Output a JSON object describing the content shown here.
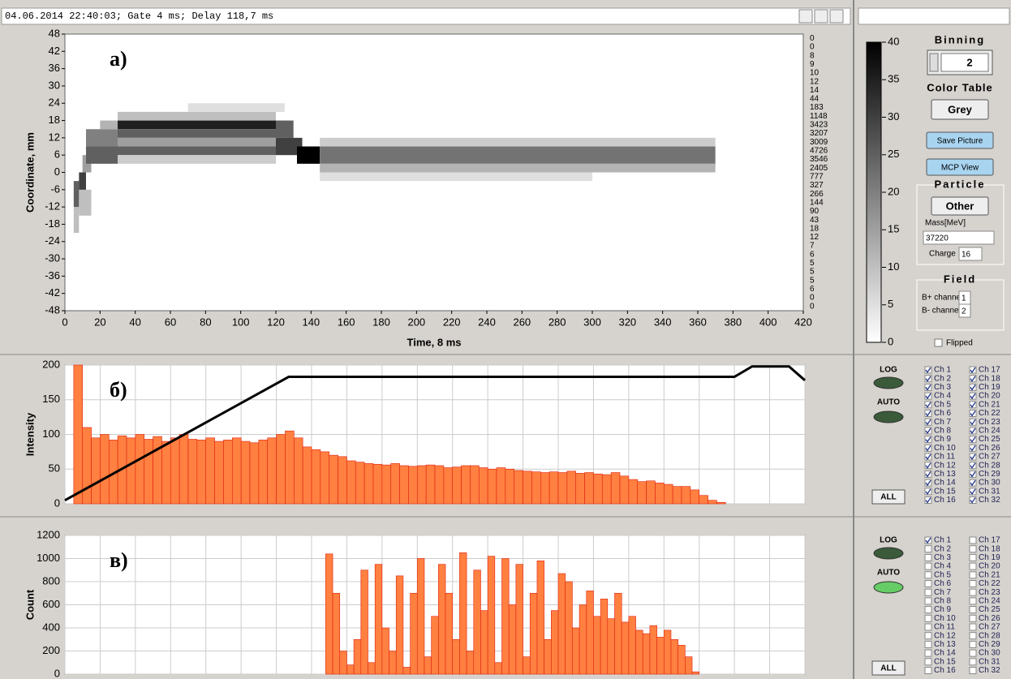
{
  "header": {
    "status": "04.06.2014 22:40:03; Gate 4 ms; Delay 118,7 ms"
  },
  "chart_data": [
    {
      "type": "heatmap",
      "annotation": "а)",
      "xlabel": "Time, 8 ms",
      "ylabel": "Coordinate, mm",
      "xlim": [
        0,
        420
      ],
      "xticks": [
        0,
        20,
        40,
        60,
        80,
        100,
        120,
        140,
        160,
        180,
        200,
        220,
        240,
        260,
        280,
        300,
        320,
        340,
        360,
        380,
        400,
        420
      ],
      "ylim": [
        -48,
        48
      ],
      "yticks": [
        48,
        42,
        36,
        30,
        24,
        18,
        12,
        6,
        0,
        -6,
        -12,
        -18,
        -24,
        -30,
        -36,
        -42,
        -48
      ],
      "cells": [
        {
          "x": [
            5,
            8
          ],
          "y": [
            -21,
            -12
          ],
          "z": 10
        },
        {
          "x": [
            5,
            8
          ],
          "y": [
            -12,
            -3
          ],
          "z": 25
        },
        {
          "x": [
            8,
            12
          ],
          "y": [
            -9,
            0
          ],
          "z": 30
        },
        {
          "x": [
            10,
            15
          ],
          "y": [
            0,
            6
          ],
          "z": 15
        },
        {
          "x": [
            8,
            15
          ],
          "y": [
            -15,
            -6
          ],
          "z": 10
        },
        {
          "x": [
            12,
            30
          ],
          "y": [
            9,
            15
          ],
          "z": 20
        },
        {
          "x": [
            12,
            30
          ],
          "y": [
            3,
            9
          ],
          "z": 25
        },
        {
          "x": [
            20,
            30
          ],
          "y": [
            15,
            18
          ],
          "z": 12
        },
        {
          "x": [
            30,
            120
          ],
          "y": [
            15,
            18
          ],
          "z": 35
        },
        {
          "x": [
            30,
            120
          ],
          "y": [
            12,
            15
          ],
          "z": 25
        },
        {
          "x": [
            30,
            120
          ],
          "y": [
            9,
            12
          ],
          "z": 15
        },
        {
          "x": [
            30,
            120
          ],
          "y": [
            6,
            9
          ],
          "z": 25
        },
        {
          "x": [
            30,
            120
          ],
          "y": [
            18,
            21
          ],
          "z": 10
        },
        {
          "x": [
            30,
            120
          ],
          "y": [
            3,
            6
          ],
          "z": 8
        },
        {
          "x": [
            70,
            125
          ],
          "y": [
            21,
            24
          ],
          "z": 5
        },
        {
          "x": [
            120,
            130
          ],
          "y": [
            12,
            18
          ],
          "z": 25
        },
        {
          "x": [
            120,
            135
          ],
          "y": [
            6,
            12
          ],
          "z": 30
        },
        {
          "x": [
            132,
            145
          ],
          "y": [
            3,
            9
          ],
          "z": 40
        },
        {
          "x": [
            145,
            370
          ],
          "y": [
            3,
            9
          ],
          "z": 22
        },
        {
          "x": [
            145,
            370
          ],
          "y": [
            0,
            3
          ],
          "z": 12
        },
        {
          "x": [
            145,
            370
          ],
          "y": [
            9,
            12
          ],
          "z": 8
        },
        {
          "x": [
            145,
            300
          ],
          "y": [
            -3,
            0
          ],
          "z": 5
        }
      ],
      "row_counts": [
        0,
        0,
        8,
        9,
        10,
        12,
        14,
        44,
        183,
        1148,
        3423,
        3207,
        3009,
        4726,
        3546,
        2405,
        777,
        327,
        266,
        144,
        90,
        43,
        18,
        12,
        7,
        6,
        5,
        5,
        5,
        6,
        0,
        0
      ],
      "colorbar": {
        "lim": [
          0,
          40
        ],
        "ticks": [
          40,
          35,
          30,
          25,
          20,
          15,
          10,
          5,
          0
        ]
      }
    },
    {
      "type": "histogram",
      "annotation": "б)",
      "ylabel": "Intensity",
      "xlim": [
        0,
        420
      ],
      "xticks": [
        0,
        20,
        40,
        60,
        80,
        100,
        120,
        140,
        160,
        180,
        200,
        220,
        240,
        260,
        280,
        300,
        320,
        340,
        360,
        380,
        400,
        420
      ],
      "ylim": [
        0,
        200
      ],
      "yticks": [
        0,
        50,
        100,
        150,
        200
      ],
      "color": "#ff8040",
      "edge_color": "#e02010",
      "bins": [
        5,
        10,
        15,
        20,
        25,
        30,
        35,
        40,
        45,
        50,
        55,
        60,
        65,
        70,
        75,
        80,
        85,
        90,
        95,
        100,
        105,
        110,
        115,
        120,
        125,
        130,
        135,
        140,
        145,
        150,
        155,
        160,
        165,
        170,
        175,
        180,
        185,
        190,
        195,
        200,
        205,
        210,
        215,
        220,
        225,
        230,
        235,
        240,
        245,
        250,
        255,
        260,
        265,
        270,
        275,
        280,
        285,
        290,
        295,
        300,
        305,
        310,
        315,
        320,
        325,
        330,
        335,
        340,
        345,
        350,
        355,
        360,
        365,
        370,
        375,
        380
      ],
      "values": [
        200,
        110,
        95,
        100,
        92,
        98,
        95,
        100,
        93,
        97,
        90,
        95,
        100,
        93,
        92,
        95,
        90,
        92,
        95,
        90,
        88,
        92,
        95,
        100,
        105,
        95,
        82,
        78,
        75,
        70,
        68,
        62,
        60,
        58,
        57,
        56,
        58,
        55,
        54,
        55,
        56,
        55,
        52,
        53,
        55,
        55,
        52,
        50,
        52,
        50,
        48,
        47,
        46,
        45,
        46,
        45,
        47,
        44,
        45,
        43,
        42,
        45,
        40,
        35,
        32,
        33,
        30,
        28,
        25,
        25,
        20,
        12,
        5,
        2,
        0
      ],
      "line": {
        "x": [
          0,
          127,
          380,
          390,
          411,
          420
        ],
        "y": [
          5,
          183,
          183,
          198,
          198,
          178
        ],
        "color": "#000000"
      }
    },
    {
      "type": "histogram",
      "annotation": "в)",
      "ylabel": "Count",
      "xlim": [
        0,
        420
      ],
      "xticks": [
        0,
        20,
        40,
        60,
        80,
        100,
        120,
        140,
        160,
        180,
        200,
        220,
        240,
        260,
        280,
        300,
        320,
        340,
        360,
        380,
        400,
        420
      ],
      "ylim": [
        0,
        1200
      ],
      "yticks": [
        0,
        200,
        400,
        600,
        800,
        1000,
        1200
      ],
      "color": "#ff8040",
      "edge_color": "#e02010",
      "bins": [
        144,
        148,
        152,
        156,
        160,
        164,
        168,
        172,
        176,
        180,
        184,
        188,
        192,
        196,
        200,
        204,
        208,
        212,
        216,
        220,
        224,
        228,
        232,
        236,
        240,
        244,
        248,
        252,
        256,
        260,
        264,
        268,
        272,
        276,
        280,
        284,
        288,
        292,
        296,
        300,
        304,
        308,
        312,
        316,
        320,
        324,
        328,
        332,
        336,
        340,
        344,
        348,
        352,
        356,
        360,
        364
      ],
      "values": [
        0,
        1040,
        700,
        200,
        80,
        300,
        900,
        100,
        950,
        400,
        200,
        850,
        60,
        700,
        1000,
        150,
        500,
        950,
        700,
        300,
        1050,
        200,
        900,
        550,
        1020,
        100,
        1000,
        600,
        950,
        150,
        700,
        980,
        300,
        550,
        870,
        800,
        400,
        600,
        720,
        500,
        650,
        480,
        700,
        450,
        500,
        380,
        350,
        420,
        320,
        380,
        300,
        250,
        150,
        20,
        0
      ]
    }
  ],
  "image_controls": {
    "binning_label": "Binning",
    "binning": 2,
    "color_table_label": "Color Table",
    "color_table": "Grey",
    "save_button": "Save Picture",
    "mcp_button": "MCP View",
    "particle_label": "Particle",
    "particle": "Other",
    "mass_label": "Mass[MeV]",
    "mass": 37220,
    "charge_label": "Charge",
    "charge": 16,
    "field_label": "Field",
    "b_plus_label": "B+ channel",
    "b_plus": 1,
    "b_minus_label": "B- channel",
    "b_minus": 2,
    "flipped_label": "Flipped",
    "flipped": false
  },
  "channel_names": [
    "Ch 1",
    "Ch 2",
    "Ch 3",
    "Ch 4",
    "Ch 5",
    "Ch 6",
    "Ch 7",
    "Ch 8",
    "Ch 9",
    "Ch 10",
    "Ch 11",
    "Ch 12",
    "Ch 13",
    "Ch 14",
    "Ch 15",
    "Ch 16",
    "Ch 17",
    "Ch 18",
    "Ch 19",
    "Ch 20",
    "Ch 21",
    "Ch 22",
    "Ch 23",
    "Ch 24",
    "Ch 25",
    "Ch 26",
    "Ch 27",
    "Ch 28",
    "Ch 29",
    "Ch 30",
    "Ch 31",
    "Ch 32"
  ],
  "channel_panels": [
    {
      "log_label": "LOG",
      "auto_label": "AUTO",
      "all_button": "ALL",
      "checked": [
        true,
        true,
        true,
        true,
        true,
        true,
        true,
        true,
        true,
        true,
        true,
        true,
        true,
        true,
        true,
        true,
        true,
        true,
        true,
        true,
        true,
        true,
        true,
        true,
        true,
        true,
        true,
        true,
        true,
        true,
        true,
        true
      ]
    },
    {
      "log_label": "LOG",
      "auto_label": "AUTO",
      "all_button": "ALL",
      "checked": [
        true,
        false,
        false,
        false,
        false,
        false,
        false,
        false,
        false,
        false,
        false,
        false,
        false,
        false,
        false,
        false,
        false,
        false,
        false,
        false,
        false,
        false,
        false,
        false,
        false,
        false,
        false,
        false,
        false,
        false,
        false,
        false
      ]
    }
  ]
}
